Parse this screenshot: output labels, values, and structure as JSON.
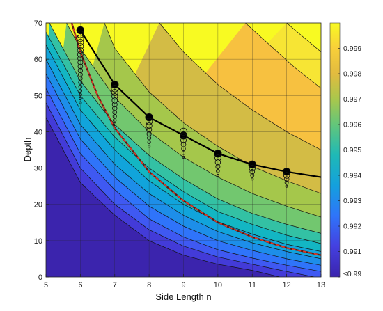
{
  "chart_data": {
    "type": "contour",
    "xlabel": "Side Length n",
    "ylabel": "Depth",
    "xlim": [
      5,
      13
    ],
    "ylim": [
      0,
      70
    ],
    "x_ticks": [
      5,
      6,
      7,
      8,
      9,
      10,
      11,
      12,
      13
    ],
    "y_ticks": [
      0,
      10,
      20,
      30,
      40,
      50,
      60,
      70
    ],
    "grid": true,
    "colorbar": {
      "position": "right",
      "tick_labels": [
        "≤0.99",
        "0.991",
        "0.992",
        "0.993",
        "0.994",
        "0.995",
        "0.996",
        "0.997",
        "0.998",
        "0.999"
      ],
      "values": [
        0.99,
        0.991,
        0.992,
        0.993,
        0.994,
        0.995,
        0.996,
        0.997,
        0.998,
        0.999
      ],
      "range": [
        0.99,
        1.0
      ]
    },
    "contour_levels": [
      {
        "level": 0.9905,
        "color": "#3b24ad",
        "points": [
          [
            5,
            44
          ],
          [
            6,
            26
          ],
          [
            7,
            17
          ],
          [
            8,
            10
          ],
          [
            9,
            6
          ],
          [
            10,
            3.5
          ],
          [
            11,
            1.8
          ],
          [
            11.8,
            0
          ]
        ]
      },
      {
        "level": 0.991,
        "color": "#433bd8",
        "points": [
          [
            5,
            48
          ],
          [
            6,
            30
          ],
          [
            7,
            20
          ],
          [
            8,
            13
          ],
          [
            9,
            8.5
          ],
          [
            10,
            5.5
          ],
          [
            11,
            3.5
          ],
          [
            12,
            1.5
          ],
          [
            12.8,
            0
          ]
        ]
      },
      {
        "level": 0.9915,
        "color": "#3f59f2",
        "points": [
          [
            5,
            52
          ],
          [
            6,
            34
          ],
          [
            7,
            24
          ],
          [
            8,
            16
          ],
          [
            9,
            11
          ],
          [
            10,
            7.5
          ],
          [
            11,
            5.2
          ],
          [
            12,
            3.2
          ],
          [
            13,
            1.5
          ]
        ]
      },
      {
        "level": 0.992,
        "color": "#2f74fa",
        "points": [
          [
            5,
            56
          ],
          [
            6,
            38
          ],
          [
            7,
            27.5
          ],
          [
            8,
            19.5
          ],
          [
            9,
            14
          ],
          [
            10,
            10
          ],
          [
            11,
            7.3
          ],
          [
            12,
            5
          ],
          [
            13,
            3.2
          ]
        ]
      },
      {
        "level": 0.9925,
        "color": "#1d8ee9",
        "points": [
          [
            5,
            60
          ],
          [
            6,
            42
          ],
          [
            7,
            31
          ],
          [
            8,
            23
          ],
          [
            9,
            17
          ],
          [
            10,
            12.5
          ],
          [
            11,
            9.4
          ],
          [
            12,
            7
          ],
          [
            13,
            5
          ]
        ]
      },
      {
        "level": 0.993,
        "color": "#11a4db",
        "points": [
          [
            5,
            64
          ],
          [
            6,
            46
          ],
          [
            7,
            35
          ],
          [
            8,
            26.5
          ],
          [
            9,
            20
          ],
          [
            10,
            15.2
          ],
          [
            11,
            11.8
          ],
          [
            12,
            9
          ],
          [
            13,
            7
          ]
        ]
      },
      {
        "level": 0.9935,
        "color": "#13b6c3",
        "points": [
          [
            5,
            67.5
          ],
          [
            6,
            50
          ],
          [
            7,
            38.5
          ],
          [
            8,
            30
          ],
          [
            9,
            23.5
          ],
          [
            10,
            18
          ],
          [
            11,
            14.5
          ],
          [
            12,
            11.5
          ],
          [
            13,
            9.2
          ]
        ]
      },
      {
        "level": 0.994,
        "color": "#33c1a4",
        "points": [
          [
            5.1,
            70
          ],
          [
            6,
            54
          ],
          [
            7,
            42
          ],
          [
            8,
            33.5
          ],
          [
            9,
            27
          ],
          [
            10,
            21.5
          ],
          [
            11,
            17.5
          ],
          [
            12,
            14.5
          ],
          [
            13,
            12
          ]
        ]
      },
      {
        "level": 0.995,
        "color": "#72c76f",
        "points": [
          [
            5.6,
            70
          ],
          [
            6,
            63
          ],
          [
            7,
            49.5
          ],
          [
            8,
            40
          ],
          [
            9,
            33
          ],
          [
            10,
            27.5
          ],
          [
            11,
            23
          ],
          [
            12,
            19.5
          ],
          [
            13,
            16.5
          ]
        ]
      },
      {
        "level": 0.996,
        "color": "#a5c74b",
        "points": [
          [
            6.7,
            70
          ],
          [
            7,
            63
          ],
          [
            8,
            51
          ],
          [
            9,
            42.5
          ],
          [
            10,
            36
          ],
          [
            11,
            30.5
          ],
          [
            12,
            26.5
          ],
          [
            13,
            23
          ]
        ]
      },
      {
        "level": 0.997,
        "color": "#d3bc45",
        "points": [
          [
            8.3,
            70
          ],
          [
            9,
            62
          ],
          [
            10,
            53
          ],
          [
            11,
            46
          ],
          [
            12,
            40
          ],
          [
            13,
            35
          ]
        ]
      },
      {
        "level": 0.998,
        "color": "#f7c140",
        "points": [
          [
            10.8,
            70
          ],
          [
            11.5,
            64
          ],
          [
            12.2,
            58
          ],
          [
            13,
            52
          ]
        ]
      },
      {
        "level": 0.999,
        "color": "#f7e534",
        "points": [
          [
            12.0,
            70
          ],
          [
            12.5,
            66
          ],
          [
            13,
            62
          ]
        ]
      }
    ],
    "series": [
      {
        "kind": "line",
        "color": "#000000",
        "points": [
          [
            6,
            68
          ],
          [
            7,
            53
          ],
          [
            8,
            44
          ],
          [
            9,
            39
          ],
          [
            10,
            34
          ],
          [
            11,
            31
          ],
          [
            12,
            29
          ],
          [
            13,
            27.5
          ]
        ]
      },
      {
        "kind": "dashed-line",
        "color": "#e03a2a",
        "points": [
          [
            5.75,
            70
          ],
          [
            6,
            62
          ],
          [
            6.5,
            50
          ],
          [
            7,
            41
          ],
          [
            8,
            29
          ],
          [
            9,
            21
          ],
          [
            10,
            15
          ],
          [
            11,
            11
          ],
          [
            12,
            8
          ],
          [
            13,
            6
          ]
        ]
      },
      {
        "kind": "filled-markers",
        "color": "#000000",
        "points": [
          [
            6,
            68
          ],
          [
            7,
            53
          ],
          [
            8,
            44
          ],
          [
            9,
            39
          ],
          [
            10,
            34
          ],
          [
            11,
            31
          ],
          [
            12,
            29
          ]
        ]
      },
      {
        "kind": "open-marker-columns",
        "columns": [
          {
            "x": 6,
            "top": 68,
            "bottom": 48
          },
          {
            "x": 7,
            "top": 53,
            "bottom": 41
          },
          {
            "x": 8,
            "top": 44,
            "bottom": 36
          },
          {
            "x": 9,
            "top": 40,
            "bottom": 33
          },
          {
            "x": 10,
            "top": 34,
            "bottom": 28
          },
          {
            "x": 11,
            "top": 31,
            "bottom": 27
          },
          {
            "x": 12,
            "top": 29,
            "bottom": 25
          }
        ]
      }
    ]
  }
}
